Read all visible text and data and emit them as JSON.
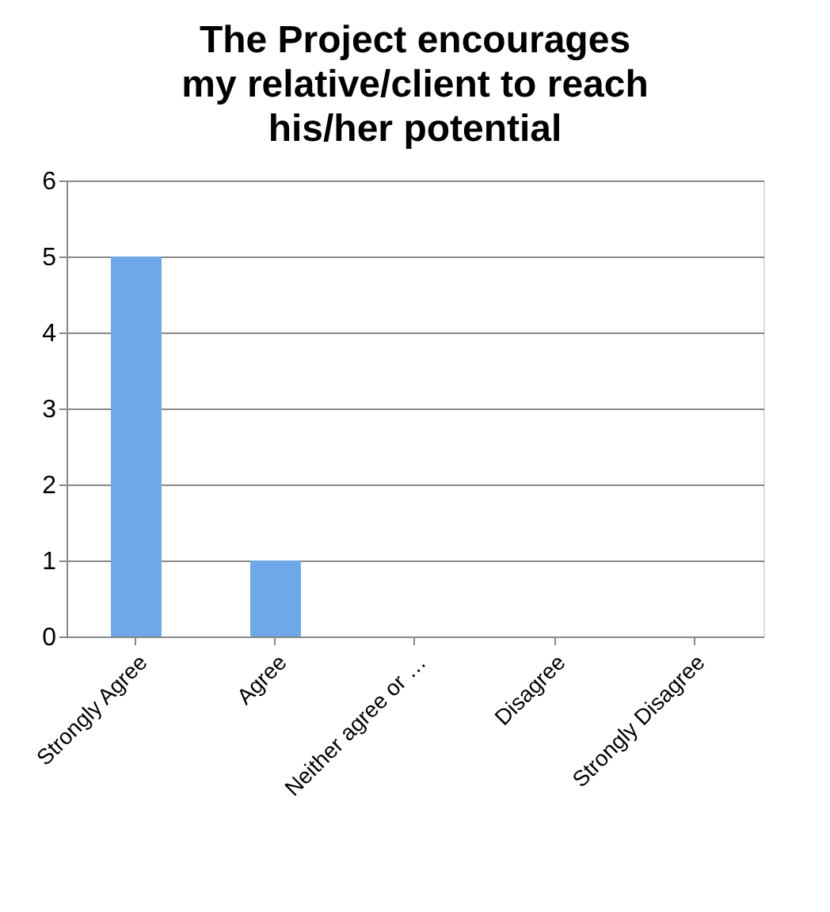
{
  "chart_data": {
    "type": "bar",
    "title": "The Project encourages\nmy relative/client to reach\nhis/her potential",
    "categories": [
      "Strongly Agree",
      "Agree",
      "Neither agree or …",
      "Disagree",
      "Strongly Disagree"
    ],
    "values": [
      5,
      1,
      0,
      0,
      0
    ],
    "color": "#6fa8e6",
    "ylim": [
      0,
      6
    ],
    "yticks": [
      0,
      1,
      2,
      3,
      4,
      5,
      6
    ],
    "grid": "y"
  }
}
